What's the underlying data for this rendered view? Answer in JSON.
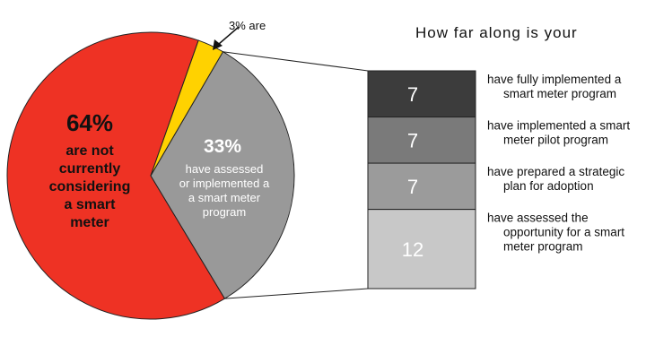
{
  "chart_data": {
    "type": "pie",
    "title": "How far along is your",
    "pie": {
      "slices": [
        {
          "name": "not-considering",
          "value": 64,
          "percent_label": "64%",
          "label_lines": [
            "are not",
            "currently",
            "considering",
            "a smart",
            "meter"
          ],
          "color": "#ee3224"
        },
        {
          "name": "assessed-or-implemented",
          "value": 33,
          "percent_label": "33%",
          "label_lines": [
            "have assessed",
            "or implemented a",
            "a smart meter",
            "program"
          ],
          "color": "#999999"
        },
        {
          "name": "small-share",
          "value": 3,
          "percent_label": "3% are",
          "color": "#ffd200"
        }
      ]
    },
    "breakdown": {
      "categories": [
        "have fully implemented a smart meter program",
        "have implemented a smart meter pilot program",
        "have prepared a strategic plan for adoption",
        "have assessed the opportunity for a smart meter program"
      ],
      "values": [
        7,
        7,
        7,
        12
      ],
      "labels": [
        "7",
        "7",
        "7",
        "12"
      ],
      "desc_lines": [
        [
          "have fully implemented a",
          "smart meter program"
        ],
        [
          "have implemented a smart",
          "meter pilot program"
        ],
        [
          "have prepared a strategic",
          "plan for adoption"
        ],
        [
          "have assessed the",
          "opportunity for a smart",
          "meter program"
        ]
      ],
      "colors": [
        "#3c3c3c",
        "#7a7a7a",
        "#9b9b9b",
        "#c8c8c8"
      ]
    }
  }
}
